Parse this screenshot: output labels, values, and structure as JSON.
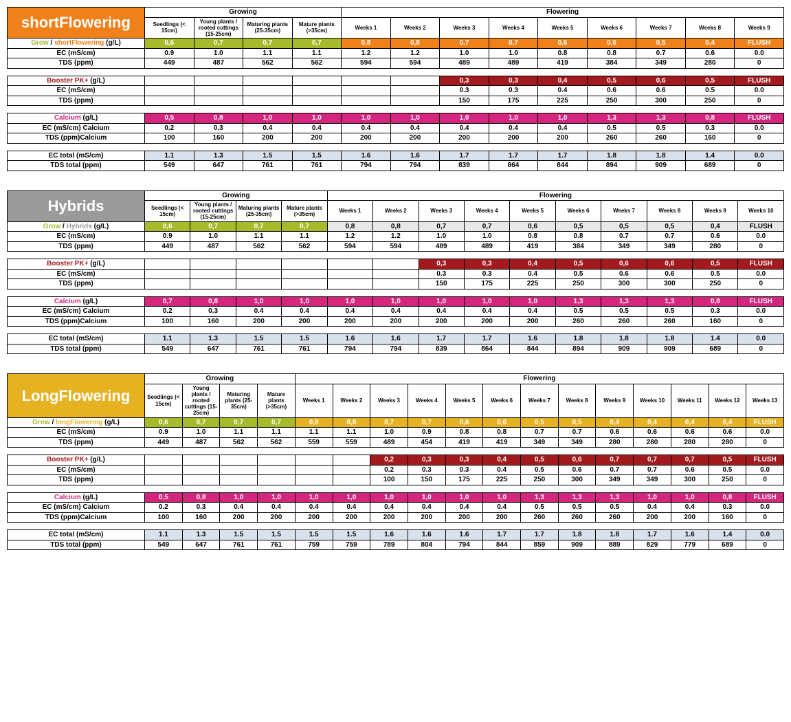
{
  "colors": {
    "orange": "#f08019",
    "gray": "#9a9a9a",
    "yellow": "#e6b221",
    "green": "#a6ba2b",
    "darkred": "#a31a1e",
    "magenta": "#d4267d",
    "lightblue": "#d9e1ec",
    "white": "#ffffff"
  },
  "common": {
    "growing": "Growing",
    "flowering": "Flowering",
    "grow_word": "Grow",
    "booster": "Booster PK+",
    "calcium": "Calcium",
    "unit_gl": " (g/L)",
    "ec": "EC (mS/cm)",
    "tds": "TDS (ppm)",
    "ec_cal": "EC (mS/cm) Calcium",
    "tds_cal": "TDS (ppm)Calcium",
    "ec_total": "EC total (mS/cm)",
    "tds_total": "TDS total (ppm)",
    "flush": "FLUSH",
    "grow_headers": [
      "Seedlings (< 15cm)",
      "Young plants / rooted cuttings (15-25cm)",
      "Maturing plants (25-35cm)",
      "Mature plants (>35cm)"
    ]
  },
  "sections": [
    {
      "id": "short",
      "title": "shortFlowering",
      "title_bg": "#f08019",
      "variant_label": "shortFlowering",
      "variant_color": "#f08019",
      "weeks": 9,
      "grow_vals": [
        "0,6",
        "0,7",
        "0,7",
        "0,7"
      ],
      "flower_vals": [
        "0,8",
        "0,8",
        "0,7",
        "0,7",
        "0,6",
        "0,6",
        "0,5",
        "0,4",
        "FLUSH"
      ],
      "flower_bg": "#f08019",
      "ec": [
        "0.9",
        "1.0",
        "1.1",
        "1.1",
        "1.2",
        "1.2",
        "1.0",
        "1.0",
        "0.8",
        "0.8",
        "0.7",
        "0.6",
        "0.0"
      ],
      "tds": [
        "449",
        "487",
        "562",
        "562",
        "594",
        "594",
        "489",
        "489",
        "419",
        "384",
        "349",
        "280",
        "0"
      ],
      "booster_start": 3,
      "booster": [
        "0,3",
        "0,3",
        "0,4",
        "0,5",
        "0,6",
        "0,5",
        "FLUSH"
      ],
      "booster_ec": [
        "0.3",
        "0.3",
        "0.4",
        "0.6",
        "0.6",
        "0.5",
        "0.0"
      ],
      "booster_tds": [
        "150",
        "175",
        "225",
        "250",
        "300",
        "250",
        "0"
      ],
      "calcium": [
        "0,5",
        "0,8",
        "1,0",
        "1,0",
        "1,0",
        "1,0",
        "1,0",
        "1,0",
        "1,0",
        "1,3",
        "1,3",
        "0,8",
        "FLUSH"
      ],
      "calcium_ec": [
        "0.2",
        "0.3",
        "0.4",
        "0.4",
        "0.4",
        "0.4",
        "0.4",
        "0.4",
        "0.4",
        "0.5",
        "0.5",
        "0.3",
        "0.0"
      ],
      "calcium_tds": [
        "100",
        "160",
        "200",
        "200",
        "200",
        "200",
        "200",
        "200",
        "200",
        "260",
        "260",
        "160",
        "0"
      ],
      "ec_total": [
        "1.1",
        "1.3",
        "1.5",
        "1.5",
        "1.6",
        "1.6",
        "1.7",
        "1.7",
        "1.7",
        "1.8",
        "1.8",
        "1.4",
        "0.0"
      ],
      "tds_total": [
        "549",
        "647",
        "761",
        "761",
        "794",
        "794",
        "839",
        "864",
        "844",
        "894",
        "909",
        "689",
        "0"
      ]
    },
    {
      "id": "hybrids",
      "title": "Hybrids",
      "title_bg": "#9a9a9a",
      "variant_label": "Hybrids",
      "variant_color": "#9a9a9a",
      "weeks": 10,
      "grow_vals": [
        "0,6",
        "0,7",
        "0,7",
        "0,7"
      ],
      "flower_vals": [
        "0,8",
        "0,8",
        "0,7",
        "0,7",
        "0,6",
        "0,5",
        "0,5",
        "0,5",
        "0,4",
        "FLUSH"
      ],
      "flower_bg": "#e8e8e8",
      "flower_fg": "#000000",
      "ec": [
        "0.9",
        "1.0",
        "1.1",
        "1.1",
        "1.2",
        "1.2",
        "1.0",
        "1.0",
        "0.8",
        "0.8",
        "0.7",
        "0.7",
        "0.6",
        "0.0"
      ],
      "tds": [
        "449",
        "487",
        "562",
        "562",
        "594",
        "594",
        "489",
        "489",
        "419",
        "384",
        "349",
        "349",
        "280",
        "0"
      ],
      "booster_start": 3,
      "booster": [
        "0,3",
        "0,3",
        "0,4",
        "0,5",
        "0,6",
        "0,6",
        "0,5",
        "FLUSH"
      ],
      "booster_ec": [
        "0.3",
        "0.3",
        "0.4",
        "0.5",
        "0.6",
        "0.6",
        "0.5",
        "0.0"
      ],
      "booster_tds": [
        "150",
        "175",
        "225",
        "250",
        "300",
        "300",
        "250",
        "0"
      ],
      "calcium": [
        "0,7",
        "0,8",
        "1,0",
        "1,0",
        "1,0",
        "1,0",
        "1,0",
        "1,0",
        "1,0",
        "1,3",
        "1,3",
        "1,3",
        "0,8",
        "FLUSH"
      ],
      "calcium_ec": [
        "0.2",
        "0.3",
        "0.4",
        "0.4",
        "0.4",
        "0.4",
        "0.4",
        "0.4",
        "0.4",
        "0.5",
        "0.5",
        "0.5",
        "0.3",
        "0.0"
      ],
      "calcium_tds": [
        "100",
        "160",
        "200",
        "200",
        "200",
        "200",
        "200",
        "200",
        "200",
        "260",
        "260",
        "260",
        "160",
        "0"
      ],
      "ec_total": [
        "1.1",
        "1.3",
        "1.5",
        "1.5",
        "1.6",
        "1.6",
        "1.7",
        "1.7",
        "1.6",
        "1.8",
        "1.8",
        "1.8",
        "1.4",
        "0.0"
      ],
      "tds_total": [
        "549",
        "647",
        "761",
        "761",
        "794",
        "794",
        "839",
        "864",
        "844",
        "894",
        "909",
        "909",
        "689",
        "0"
      ]
    },
    {
      "id": "long",
      "title": "LongFlowering",
      "title_bg": "#e6b221",
      "variant_label": "longFlowering",
      "variant_color": "#e6b221",
      "weeks": 13,
      "grow_vals": [
        "0,6",
        "0,7",
        "0,7",
        "0,7"
      ],
      "flower_vals": [
        "0,8",
        "0,8",
        "0,7",
        "0,7",
        "0,6",
        "0,6",
        "0,5",
        "0,5",
        "0,4",
        "0,4",
        "0,4",
        "0,4",
        "FLUSH"
      ],
      "flower_bg": "#e6b221",
      "ec": [
        "0.9",
        "1.0",
        "1.1",
        "1.1",
        "1.1",
        "1.1",
        "1.0",
        "0.9",
        "0.8",
        "0.8",
        "0.7",
        "0.7",
        "0.6",
        "0.6",
        "0.6",
        "0.6",
        "0.0"
      ],
      "tds": [
        "449",
        "487",
        "562",
        "562",
        "559",
        "559",
        "489",
        "454",
        "419",
        "419",
        "349",
        "349",
        "280",
        "280",
        "280",
        "280",
        "0"
      ],
      "booster_start": 3,
      "booster": [
        "0,2",
        "0,3",
        "0,3",
        "0,4",
        "0,5",
        "0,6",
        "0,7",
        "0,7",
        "0,7",
        "0,5",
        "FLUSH"
      ],
      "booster_ec": [
        "0.2",
        "0.3",
        "0.3",
        "0.4",
        "0.5",
        "0.6",
        "0.7",
        "0.7",
        "0.6",
        "0.5",
        "0.0"
      ],
      "booster_tds": [
        "100",
        "150",
        "175",
        "225",
        "250",
        "300",
        "349",
        "349",
        "300",
        "250",
        "0"
      ],
      "calcium": [
        "0,5",
        "0,8",
        "1,0",
        "1,0",
        "1,0",
        "1,0",
        "1,0",
        "1,0",
        "1,0",
        "1,0",
        "1,3",
        "1,3",
        "1,3",
        "1,0",
        "1,0",
        "0,8",
        "FLUSH"
      ],
      "calcium_ec": [
        "0.2",
        "0.3",
        "0.4",
        "0.4",
        "0.4",
        "0.4",
        "0.4",
        "0.4",
        "0.4",
        "0.4",
        "0.5",
        "0.5",
        "0.5",
        "0.4",
        "0.4",
        "0.3",
        "0.0"
      ],
      "calcium_tds": [
        "100",
        "160",
        "200",
        "200",
        "200",
        "200",
        "200",
        "200",
        "200",
        "200",
        "260",
        "260",
        "260",
        "200",
        "200",
        "160",
        "0"
      ],
      "ec_total": [
        "1.1",
        "1.3",
        "1.5",
        "1.5",
        "1.5",
        "1.5",
        "1.6",
        "1.6",
        "1.6",
        "1.7",
        "1.7",
        "1.8",
        "1.8",
        "1.7",
        "1.6",
        "1.4",
        "0.0"
      ],
      "tds_total": [
        "549",
        "647",
        "761",
        "761",
        "759",
        "759",
        "789",
        "804",
        "794",
        "844",
        "859",
        "909",
        "889",
        "829",
        "779",
        "689",
        "0"
      ]
    }
  ]
}
